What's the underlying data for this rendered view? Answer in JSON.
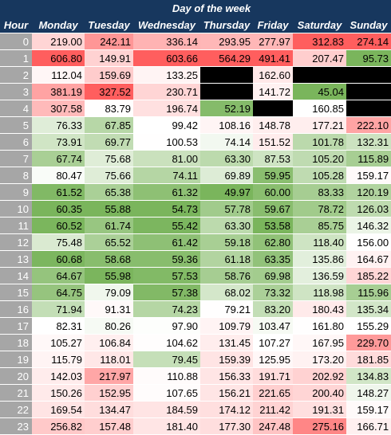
{
  "header": {
    "title": "Day of the week",
    "hour_label": "Hour",
    "days": [
      "Monday",
      "Tuesday",
      "Wednesday",
      "Thursday",
      "Friday",
      "Saturday",
      "Sunday"
    ]
  },
  "colors": {
    "header_bg": "#17375e",
    "hour_bg": "#a6a6a6",
    "missing": "#000000",
    "low": "#7ab55c",
    "mid": "#ffffff",
    "high": "#ff5e5e"
  },
  "rows": [
    {
      "hour": "0",
      "values": [
        "219.00",
        "242.11",
        "336.14",
        "293.95",
        "277.97",
        "312.83",
        "274.14"
      ]
    },
    {
      "hour": "1",
      "values": [
        "606.80",
        "149.91",
        "603.66",
        "564.29",
        "491.41",
        "207.47",
        "95.73"
      ]
    },
    {
      "hour": "2",
      "values": [
        "112.04",
        "159.69",
        "133.25",
        "",
        "162.60",
        "",
        ""
      ]
    },
    {
      "hour": "3",
      "values": [
        "381.19",
        "327.52",
        "230.71",
        "",
        "141.72",
        "45.04",
        ""
      ]
    },
    {
      "hour": "4",
      "values": [
        "307.58",
        "83.79",
        "196.74",
        "52.19",
        "",
        "160.85",
        ""
      ]
    },
    {
      "hour": "5",
      "values": [
        "76.33",
        "67.85",
        "99.42",
        "108.16",
        "148.78",
        "177.21",
        "222.10"
      ]
    },
    {
      "hour": "6",
      "values": [
        "73.91",
        "69.77",
        "100.53",
        "74.14",
        "151.52",
        "101.78",
        "132.31"
      ]
    },
    {
      "hour": "7",
      "values": [
        "67.74",
        "75.68",
        "81.00",
        "63.30",
        "87.53",
        "105.20",
        "115.89"
      ]
    },
    {
      "hour": "8",
      "values": [
        "80.47",
        "75.66",
        "74.11",
        "69.89",
        "59.95",
        "105.28",
        "159.17"
      ]
    },
    {
      "hour": "9",
      "values": [
        "61.52",
        "65.38",
        "61.32",
        "49.97",
        "60.00",
        "83.33",
        "120.19"
      ]
    },
    {
      "hour": "10",
      "values": [
        "60.35",
        "55.88",
        "54.73",
        "57.78",
        "59.67",
        "78.72",
        "126.03"
      ]
    },
    {
      "hour": "11",
      "values": [
        "60.52",
        "61.74",
        "55.42",
        "63.30",
        "53.58",
        "85.75",
        "146.32"
      ]
    },
    {
      "hour": "12",
      "values": [
        "75.48",
        "65.52",
        "61.42",
        "59.18",
        "62.80",
        "118.40",
        "156.00"
      ]
    },
    {
      "hour": "13",
      "values": [
        "60.68",
        "58.68",
        "59.36",
        "61.18",
        "63.35",
        "135.86",
        "164.67"
      ]
    },
    {
      "hour": "14",
      "values": [
        "64.67",
        "55.98",
        "57.53",
        "58.76",
        "69.98",
        "136.59",
        "185.22"
      ]
    },
    {
      "hour": "15",
      "values": [
        "64.75",
        "79.09",
        "57.38",
        "68.02",
        "73.32",
        "118.98",
        "115.96"
      ]
    },
    {
      "hour": "16",
      "values": [
        "71.94",
        "91.31",
        "74.23",
        "79.21",
        "83.20",
        "180.43",
        "135.34"
      ]
    },
    {
      "hour": "17",
      "values": [
        "82.31",
        "80.26",
        "97.90",
        "109.79",
        "103.47",
        "161.80",
        "155.29"
      ]
    },
    {
      "hour": "18",
      "values": [
        "105.27",
        "106.84",
        "104.62",
        "131.45",
        "107.27",
        "167.95",
        "229.70"
      ]
    },
    {
      "hour": "19",
      "values": [
        "115.79",
        "118.01",
        "79.45",
        "159.39",
        "125.95",
        "173.20",
        "181.85"
      ]
    },
    {
      "hour": "20",
      "values": [
        "142.03",
        "217.97",
        "110.88",
        "156.33",
        "191.71",
        "202.92",
        "134.83"
      ]
    },
    {
      "hour": "21",
      "values": [
        "150.26",
        "152.95",
        "107.65",
        "156.21",
        "221.65",
        "200.40",
        "148.27"
      ]
    },
    {
      "hour": "22",
      "values": [
        "169.54",
        "134.47",
        "184.59",
        "174.12",
        "211.42",
        "191.31",
        "159.17"
      ]
    },
    {
      "hour": "23",
      "values": [
        "256.82",
        "157.48",
        "181.40",
        "177.30",
        "247.48",
        "275.16",
        "166.71"
      ]
    }
  ]
}
